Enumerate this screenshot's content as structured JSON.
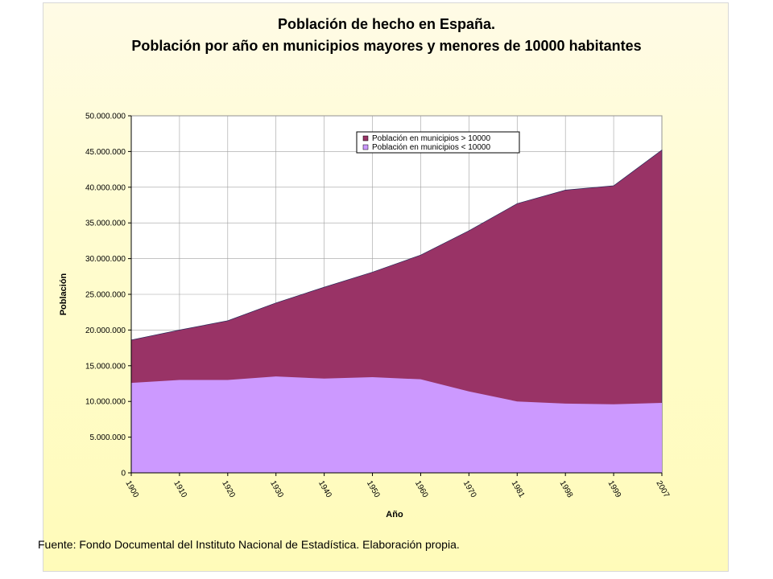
{
  "title_line1": "Población de hecho en España.",
  "title_line2": "Población por año en municipios mayores y menores de 10000 habitantes",
  "source": "Fuente: Fondo Documental del Instituto Nacional de Estadística. Elaboración propia.",
  "colors": {
    "upper_area": "#993366",
    "lower_area": "#cc99ff",
    "plot_bg": "#ffffff",
    "grid": "#a0a0a0"
  },
  "chart_data": {
    "type": "area",
    "stacked": true,
    "title": "Población de hecho en España. Población por año en municipios mayores y menores de 10000 habitantes",
    "xlabel": "Año",
    "ylabel": "Población",
    "categories": [
      "1900",
      "1910",
      "1920",
      "1930",
      "1940",
      "1950",
      "1960",
      "1970",
      "1981",
      "1998",
      "1999",
      "2007"
    ],
    "yticks": [
      "0",
      "5.000.000",
      "10.000.000",
      "15.000.000",
      "20.000.000",
      "25.000.000",
      "30.000.000",
      "35.000.000",
      "40.000.000",
      "45.000.000",
      "50.000.000"
    ],
    "ylim": [
      0,
      50000000
    ],
    "grid": true,
    "legend_position": "top-right",
    "series": [
      {
        "name": "Población en municipios < 10000",
        "color": "#cc99ff",
        "values": [
          12600000,
          13000000,
          13000000,
          13500000,
          13200000,
          13400000,
          13100000,
          11400000,
          10000000,
          9700000,
          9600000,
          9800000
        ]
      },
      {
        "name": "Población en municipios > 10000",
        "color": "#993366",
        "values": [
          6000000,
          7000000,
          8300000,
          10300000,
          12800000,
          14700000,
          17400000,
          22500000,
          27700000,
          29900000,
          30600000,
          35400000
        ]
      }
    ],
    "legend": [
      {
        "label": "Población en municipios > 10000",
        "color": "#993366"
      },
      {
        "label": "Población en municipios < 10000",
        "color": "#cc99ff"
      }
    ]
  }
}
